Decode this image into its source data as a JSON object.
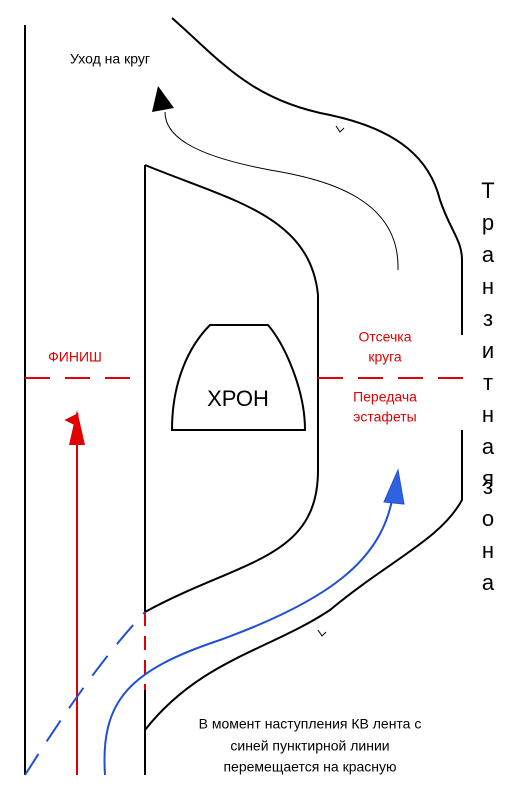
{
  "labels": {
    "lap_exit": "Уход на круг",
    "finish": "ФИНИШ",
    "chrono": "ХРОН",
    "lap_cut": [
      "Отсечка",
      "круга"
    ],
    "relay_handover": [
      "Передача",
      "эстафеты"
    ],
    "transit_zone": [
      "Транзитная",
      "зона"
    ],
    "note": [
      "В момент наступления КВ лента с",
      "синей пунктирной линии",
      "перемещается на красную"
    ]
  }
}
